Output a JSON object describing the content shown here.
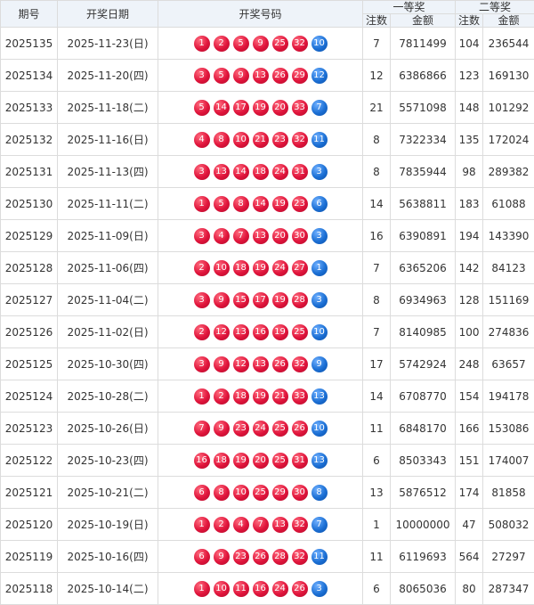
{
  "headers": {
    "issue": "期号",
    "date": "开奖日期",
    "numbers": "开奖号码",
    "first_prize": "一等奖",
    "second_prize": "二等奖",
    "count": "注数",
    "amount": "金额"
  },
  "colors": {
    "red_ball": "#e0143b",
    "blue_ball": "#1b6fd4"
  },
  "rows": [
    {
      "issue": "2025135",
      "date": "2025-11-23(日)",
      "red": [
        "1",
        "2",
        "5",
        "9",
        "25",
        "32"
      ],
      "blue": "10",
      "c1": "7",
      "a1": "7811499",
      "c2": "104",
      "a2": "236544"
    },
    {
      "issue": "2025134",
      "date": "2025-11-20(四)",
      "red": [
        "3",
        "5",
        "9",
        "13",
        "26",
        "29"
      ],
      "blue": "12",
      "c1": "12",
      "a1": "6386866",
      "c2": "123",
      "a2": "169130"
    },
    {
      "issue": "2025133",
      "date": "2025-11-18(二)",
      "red": [
        "5",
        "14",
        "17",
        "19",
        "20",
        "33"
      ],
      "blue": "7",
      "c1": "21",
      "a1": "5571098",
      "c2": "148",
      "a2": "101292"
    },
    {
      "issue": "2025132",
      "date": "2025-11-16(日)",
      "red": [
        "4",
        "8",
        "10",
        "21",
        "23",
        "32"
      ],
      "blue": "11",
      "c1": "8",
      "a1": "7322334",
      "c2": "135",
      "a2": "172024"
    },
    {
      "issue": "2025131",
      "date": "2025-11-13(四)",
      "red": [
        "3",
        "13",
        "14",
        "18",
        "24",
        "31"
      ],
      "blue": "3",
      "c1": "8",
      "a1": "7835944",
      "c2": "98",
      "a2": "289382"
    },
    {
      "issue": "2025130",
      "date": "2025-11-11(二)",
      "red": [
        "1",
        "5",
        "8",
        "14",
        "19",
        "23"
      ],
      "blue": "6",
      "c1": "14",
      "a1": "5638811",
      "c2": "183",
      "a2": "61088"
    },
    {
      "issue": "2025129",
      "date": "2025-11-09(日)",
      "red": [
        "3",
        "4",
        "7",
        "13",
        "20",
        "30"
      ],
      "blue": "3",
      "c1": "16",
      "a1": "6390891",
      "c2": "194",
      "a2": "143390"
    },
    {
      "issue": "2025128",
      "date": "2025-11-06(四)",
      "red": [
        "2",
        "10",
        "18",
        "19",
        "24",
        "27"
      ],
      "blue": "1",
      "c1": "7",
      "a1": "6365206",
      "c2": "142",
      "a2": "84123"
    },
    {
      "issue": "2025127",
      "date": "2025-11-04(二)",
      "red": [
        "3",
        "9",
        "15",
        "17",
        "19",
        "28"
      ],
      "blue": "3",
      "c1": "8",
      "a1": "6934963",
      "c2": "128",
      "a2": "151169"
    },
    {
      "issue": "2025126",
      "date": "2025-11-02(日)",
      "red": [
        "2",
        "12",
        "13",
        "16",
        "19",
        "25"
      ],
      "blue": "10",
      "c1": "7",
      "a1": "8140985",
      "c2": "100",
      "a2": "274836"
    },
    {
      "issue": "2025125",
      "date": "2025-10-30(四)",
      "red": [
        "3",
        "9",
        "12",
        "13",
        "26",
        "32"
      ],
      "blue": "9",
      "c1": "17",
      "a1": "5742924",
      "c2": "248",
      "a2": "63657"
    },
    {
      "issue": "2025124",
      "date": "2025-10-28(二)",
      "red": [
        "1",
        "2",
        "18",
        "19",
        "21",
        "33"
      ],
      "blue": "13",
      "c1": "14",
      "a1": "6708770",
      "c2": "154",
      "a2": "194178"
    },
    {
      "issue": "2025123",
      "date": "2025-10-26(日)",
      "red": [
        "7",
        "9",
        "23",
        "24",
        "25",
        "26"
      ],
      "blue": "10",
      "c1": "11",
      "a1": "6848170",
      "c2": "166",
      "a2": "153086"
    },
    {
      "issue": "2025122",
      "date": "2025-10-23(四)",
      "red": [
        "16",
        "18",
        "19",
        "20",
        "25",
        "31"
      ],
      "blue": "13",
      "c1": "6",
      "a1": "8503343",
      "c2": "151",
      "a2": "174007"
    },
    {
      "issue": "2025121",
      "date": "2025-10-21(二)",
      "red": [
        "6",
        "8",
        "10",
        "25",
        "29",
        "30"
      ],
      "blue": "8",
      "c1": "13",
      "a1": "5876512",
      "c2": "174",
      "a2": "81858"
    },
    {
      "issue": "2025120",
      "date": "2025-10-19(日)",
      "red": [
        "1",
        "2",
        "4",
        "7",
        "13",
        "32"
      ],
      "blue": "7",
      "c1": "1",
      "a1": "10000000",
      "c2": "47",
      "a2": "508032"
    },
    {
      "issue": "2025119",
      "date": "2025-10-16(四)",
      "red": [
        "6",
        "9",
        "23",
        "26",
        "28",
        "32"
      ],
      "blue": "11",
      "c1": "11",
      "a1": "6119693",
      "c2": "564",
      "a2": "27297"
    },
    {
      "issue": "2025118",
      "date": "2025-10-14(二)",
      "red": [
        "1",
        "10",
        "11",
        "16",
        "24",
        "26"
      ],
      "blue": "3",
      "c1": "6",
      "a1": "8065036",
      "c2": "80",
      "a2": "287347"
    }
  ]
}
